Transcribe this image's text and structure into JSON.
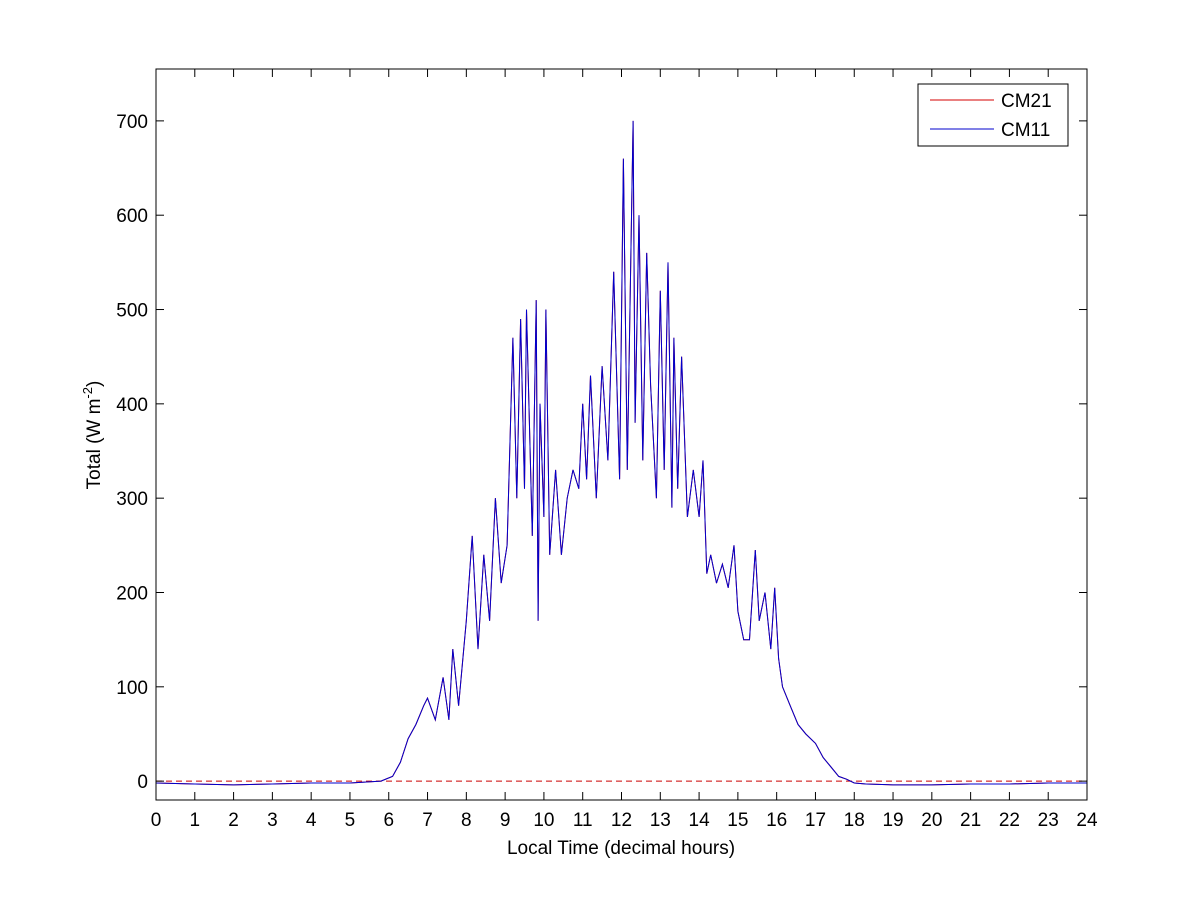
{
  "chart_data": {
    "type": "line",
    "xlabel": "Local Time (decimal hours)",
    "ylabel": {
      "prefix": "Total (W m",
      "superscript": "-2",
      "suffix": ")"
    },
    "xlim": [
      0,
      24
    ],
    "ylim": [
      -20,
      755
    ],
    "xticks": [
      0,
      1,
      2,
      3,
      4,
      5,
      6,
      7,
      8,
      9,
      10,
      11,
      12,
      13,
      14,
      15,
      16,
      17,
      18,
      19,
      20,
      21,
      22,
      23,
      24
    ],
    "yticks": [
      0,
      100,
      200,
      300,
      400,
      500,
      600,
      700
    ],
    "grid": false,
    "legend_position": "top-right",
    "reference_line": {
      "y": 0,
      "style": "dashed",
      "color": "#cc0000"
    },
    "series": [
      {
        "name": "CM21",
        "color": "#d40000",
        "x": [
          0,
          1,
          2,
          3,
          4,
          5,
          5.8,
          6.1,
          6.3,
          6.5,
          6.7,
          6.9,
          7.0,
          7.2,
          7.4,
          7.55,
          7.65,
          7.8,
          8.0,
          8.15,
          8.3,
          8.45,
          8.6,
          8.75,
          8.9,
          9.05,
          9.2,
          9.3,
          9.4,
          9.5,
          9.55,
          9.7,
          9.8,
          9.85,
          9.9,
          10.0,
          10.05,
          10.15,
          10.3,
          10.45,
          10.6,
          10.75,
          10.9,
          11.0,
          11.1,
          11.2,
          11.35,
          11.5,
          11.65,
          11.8,
          11.95,
          12.05,
          12.15,
          12.3,
          12.35,
          12.45,
          12.55,
          12.65,
          12.75,
          12.9,
          13.0,
          13.1,
          13.2,
          13.3,
          13.35,
          13.45,
          13.55,
          13.7,
          13.85,
          14.0,
          14.1,
          14.2,
          14.3,
          14.45,
          14.6,
          14.75,
          14.9,
          15.0,
          15.15,
          15.3,
          15.45,
          15.55,
          15.7,
          15.85,
          15.95,
          16.05,
          16.15,
          16.35,
          16.55,
          16.75,
          17.0,
          17.2,
          17.4,
          17.6,
          17.8,
          18.0,
          18.3,
          19,
          20,
          21,
          22,
          23,
          24
        ],
        "y": [
          -2,
          -3,
          -4,
          -3,
          -2,
          -2,
          0,
          5,
          20,
          45,
          60,
          80,
          88,
          65,
          110,
          65,
          140,
          80,
          170,
          260,
          140,
          240,
          170,
          300,
          210,
          250,
          470,
          300,
          490,
          310,
          500,
          260,
          510,
          170,
          400,
          280,
          500,
          240,
          330,
          240,
          300,
          330,
          310,
          400,
          320,
          430,
          300,
          440,
          340,
          540,
          320,
          660,
          330,
          700,
          380,
          600,
          340,
          560,
          420,
          300,
          520,
          330,
          550,
          290,
          470,
          310,
          450,
          280,
          330,
          280,
          340,
          220,
          240,
          210,
          230,
          205,
          250,
          180,
          150,
          150,
          245,
          170,
          200,
          140,
          205,
          130,
          100,
          80,
          60,
          50,
          40,
          25,
          15,
          5,
          2,
          -2,
          -3,
          -4,
          -4,
          -3,
          -3,
          -2,
          -2
        ]
      },
      {
        "name": "CM11",
        "color": "#0000cc",
        "x": [
          0,
          1,
          2,
          3,
          4,
          5,
          5.8,
          6.1,
          6.3,
          6.5,
          6.7,
          6.9,
          7.0,
          7.2,
          7.4,
          7.55,
          7.65,
          7.8,
          8.0,
          8.15,
          8.3,
          8.45,
          8.6,
          8.75,
          8.9,
          9.05,
          9.2,
          9.3,
          9.4,
          9.5,
          9.55,
          9.7,
          9.8,
          9.85,
          9.9,
          10.0,
          10.05,
          10.15,
          10.3,
          10.45,
          10.6,
          10.75,
          10.9,
          11.0,
          11.1,
          11.2,
          11.35,
          11.5,
          11.65,
          11.8,
          11.95,
          12.05,
          12.15,
          12.3,
          12.35,
          12.45,
          12.55,
          12.65,
          12.75,
          12.9,
          13.0,
          13.1,
          13.2,
          13.3,
          13.35,
          13.45,
          13.55,
          13.7,
          13.85,
          14.0,
          14.1,
          14.2,
          14.3,
          14.45,
          14.6,
          14.75,
          14.9,
          15.0,
          15.15,
          15.3,
          15.45,
          15.55,
          15.7,
          15.85,
          15.95,
          16.05,
          16.15,
          16.35,
          16.55,
          16.75,
          17.0,
          17.2,
          17.4,
          17.6,
          17.8,
          18.0,
          18.3,
          19,
          20,
          21,
          22,
          23,
          24
        ],
        "y": [
          -2,
          -3,
          -4,
          -3,
          -2,
          -2,
          0,
          5,
          20,
          45,
          60,
          80,
          88,
          65,
          110,
          65,
          140,
          80,
          170,
          260,
          140,
          240,
          170,
          300,
          210,
          250,
          470,
          300,
          490,
          310,
          500,
          260,
          510,
          170,
          400,
          280,
          500,
          240,
          330,
          240,
          300,
          330,
          310,
          400,
          320,
          430,
          300,
          440,
          340,
          540,
          320,
          660,
          330,
          700,
          380,
          600,
          340,
          560,
          420,
          300,
          520,
          330,
          550,
          290,
          470,
          310,
          450,
          280,
          330,
          280,
          340,
          220,
          240,
          210,
          230,
          205,
          250,
          180,
          150,
          150,
          245,
          170,
          200,
          140,
          205,
          130,
          100,
          80,
          60,
          50,
          40,
          25,
          15,
          5,
          2,
          -2,
          -3,
          -4,
          -4,
          -3,
          -3,
          -2,
          -2
        ]
      }
    ]
  }
}
